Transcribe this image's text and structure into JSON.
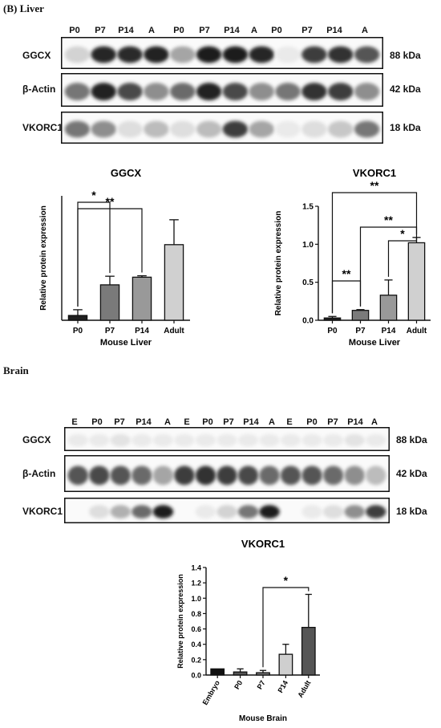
{
  "liver": {
    "panel_title": "(B) Liver",
    "lanes": [
      "P0",
      "P7",
      "P14",
      "A",
      "P0",
      "P7",
      "P14",
      "A",
      "P0",
      "P7",
      "P14",
      "A"
    ],
    "rows": [
      "GGCX",
      "β-Actin",
      "VKORC1"
    ],
    "sizes": [
      "88 kDa",
      "42 kDa",
      "18 kDa"
    ],
    "blots": {
      "ggcx": [
        0.15,
        0.9,
        0.88,
        0.92,
        0.35,
        0.95,
        0.95,
        0.9,
        0.05,
        0.8,
        0.85,
        0.7
      ],
      "actin": [
        0.55,
        0.92,
        0.75,
        0.45,
        0.6,
        0.92,
        0.75,
        0.45,
        0.55,
        0.85,
        0.8,
        0.45
      ],
      "vkorc1": [
        0.55,
        0.45,
        0.1,
        0.25,
        0.1,
        0.25,
        0.8,
        0.35,
        0.05,
        0.1,
        0.2,
        0.55
      ]
    }
  },
  "brain": {
    "panel_title": "Brain",
    "lanes": [
      "E",
      "P0",
      "P7",
      "P14",
      "A",
      "E",
      "P0",
      "P7",
      "P14",
      "A",
      "E",
      "P0",
      "P7",
      "P14",
      "A"
    ],
    "rows": [
      "GGCX",
      "β-Actin",
      "VKORC1"
    ],
    "sizes": [
      "88 kDa",
      "42 kDa",
      "18 kDa"
    ],
    "blots": {
      "ggcx": [
        0.05,
        0.05,
        0.08,
        0.05,
        0.05,
        0.05,
        0.05,
        0.05,
        0.05,
        0.05,
        0.05,
        0.05,
        0.05,
        0.08,
        0.05
      ],
      "actin": [
        0.7,
        0.75,
        0.7,
        0.6,
        0.35,
        0.8,
        0.85,
        0.8,
        0.75,
        0.6,
        0.7,
        0.7,
        0.6,
        0.45,
        0.25
      ],
      "vkorc1": [
        0.0,
        0.1,
        0.3,
        0.6,
        0.95,
        0.0,
        0.05,
        0.15,
        0.55,
        0.95,
        0.0,
        0.05,
        0.1,
        0.45,
        0.8
      ]
    }
  },
  "chart_data": [
    {
      "type": "bar",
      "title": "GGCX",
      "categories": [
        "P0",
        "P7",
        "P14",
        "Adult"
      ],
      "values": [
        0.1,
        0.74,
        0.9,
        1.58
      ],
      "errors": [
        0.12,
        0.18,
        0.03,
        0.52
      ],
      "xlabel": "Mouse Liver",
      "ylabel": "Relative protein expression",
      "ylim": [
        0,
        2.6
      ],
      "colors": [
        "#1f1f1f",
        "#7a7a7a",
        "#999999",
        "#d0d0d0"
      ],
      "significance": [
        {
          "from": "P0",
          "to": "P7",
          "label": "*"
        },
        {
          "from": "P0",
          "to": "P14",
          "label": "**"
        }
      ]
    },
    {
      "type": "bar",
      "title": "VKORC1",
      "categories": [
        "P0",
        "P7",
        "P14",
        "Adult"
      ],
      "values": [
        0.03,
        0.13,
        0.33,
        1.02
      ],
      "errors": [
        0.02,
        0.01,
        0.2,
        0.07
      ],
      "xlabel": "Mouse Liver",
      "ylabel": "Relative protein expression",
      "ylim": [
        0,
        1.5
      ],
      "yticks": [
        "0.0",
        "0.5",
        "1.0",
        "1.5"
      ],
      "colors": [
        "#1f1f1f",
        "#7a7a7a",
        "#999999",
        "#d0d0d0"
      ],
      "significance": [
        {
          "from": "P0",
          "to": "P7",
          "label": "**"
        },
        {
          "from": "P14",
          "to": "Adult",
          "label": "*"
        },
        {
          "from": "P7",
          "to": "Adult",
          "label": "**"
        },
        {
          "from": "P0",
          "to": "Adult",
          "label": "**"
        }
      ]
    },
    {
      "type": "bar",
      "title": "VKORC1",
      "categories": [
        "Embryo",
        "P0",
        "P7",
        "P14",
        "Adult"
      ],
      "values": [
        0.08,
        0.04,
        0.03,
        0.27,
        0.62
      ],
      "errors": [
        0.0,
        0.04,
        0.03,
        0.13,
        0.43
      ],
      "xlabel": "Mouse Brain",
      "ylabel": "Relative protein expression",
      "ylim": [
        0,
        1.4
      ],
      "yticks": [
        "0.0",
        "0.2",
        "0.4",
        "0.6",
        "0.8",
        "1.0",
        "1.2",
        "1.4"
      ],
      "colors": [
        "#111111",
        "#555555",
        "#7a7a7a",
        "#cfcfcf",
        "#555555"
      ],
      "significance": [
        {
          "from": "P7",
          "to": "Adult",
          "label": "*"
        }
      ]
    }
  ]
}
